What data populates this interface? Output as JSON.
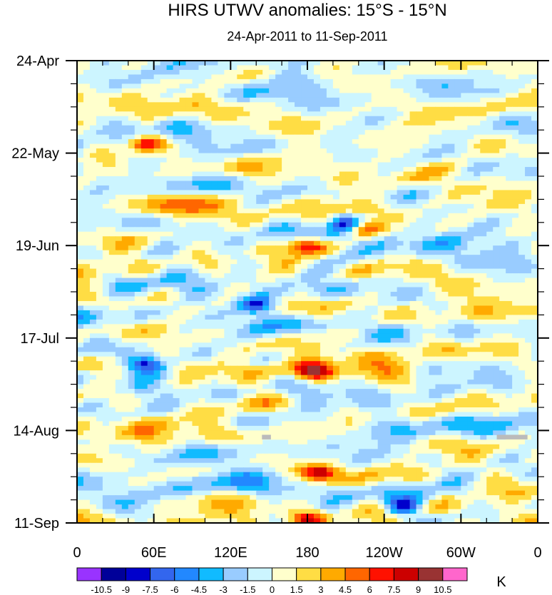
{
  "chart_data": {
    "type": "heatmap",
    "title": "HIRS UTWV anomalies: 15°S - 15°N",
    "subtitle": "24-Apr-2011 to 11-Sep-2011",
    "x_tick_labels": [
      "0",
      "60E",
      "120E",
      "180",
      "120W",
      "60W",
      "0"
    ],
    "x_range_deg_east": [
      0,
      360
    ],
    "x_tick_positions_deg_east": [
      0,
      60,
      120,
      180,
      240,
      300,
      360
    ],
    "y_tick_labels": [
      "24-Apr",
      "22-May",
      "19-Jun",
      "17-Jul",
      "14-Aug",
      "11-Sep"
    ],
    "y_tick_day_offsets": [
      0,
      28,
      56,
      84,
      112,
      140
    ],
    "y_range_days": [
      0,
      140
    ],
    "y_direction": "time increases downward",
    "colorbar": {
      "unit_label": "K",
      "levels": [
        "-10.5",
        "-9",
        "-7.5",
        "-6",
        "-4.5",
        "-3",
        "-1.5",
        "0",
        "1.5",
        "3",
        "4.5",
        "6",
        "7.5",
        "9",
        "10.5"
      ],
      "colors": [
        "#9933ff",
        "#000099",
        "#0000cc",
        "#3366ee",
        "#2288ff",
        "#11bbff",
        "#99ccff",
        "#ccf5ff",
        "#ffffcc",
        "#ffdd44",
        "#ffaa00",
        "#ff6600",
        "#ff1100",
        "#cc0000",
        "#993333",
        "#ff66cc"
      ]
    },
    "missing_data_color": "#bbbbbb",
    "notable_features": [
      {
        "description": "warm anomaly (red/maroon)",
        "lon_deg_east": 55,
        "day": 25
      },
      {
        "description": "warm anomaly (red/pink)",
        "lon_deg_east": 225,
        "day": 51
      },
      {
        "description": "warm anomaly (red/maroon)",
        "lon_deg_east": 180,
        "day": 56
      },
      {
        "description": "warm anomaly (red)",
        "lon_deg_east": 185,
        "day": 94
      },
      {
        "description": "warm anomaly (red/maroon)",
        "lon_deg_east": 190,
        "day": 125
      },
      {
        "description": "warm anomaly (red)",
        "lon_deg_east": 180,
        "day": 139
      },
      {
        "description": "cold anomaly (blue)",
        "lon_deg_east": 140,
        "day": 74
      },
      {
        "description": "cold anomaly (blue)",
        "lon_deg_east": 55,
        "day": 92
      },
      {
        "description": "cold anomaly (blue)",
        "lon_deg_east": 210,
        "day": 49
      },
      {
        "description": "cold anomaly (blue)",
        "lon_deg_east": 255,
        "day": 135
      },
      {
        "description": "missing data (gray)",
        "lon_deg_east": 148,
        "day": 114
      },
      {
        "description": "missing data (gray)",
        "lon_deg_east": 340,
        "day": 114
      }
    ]
  }
}
